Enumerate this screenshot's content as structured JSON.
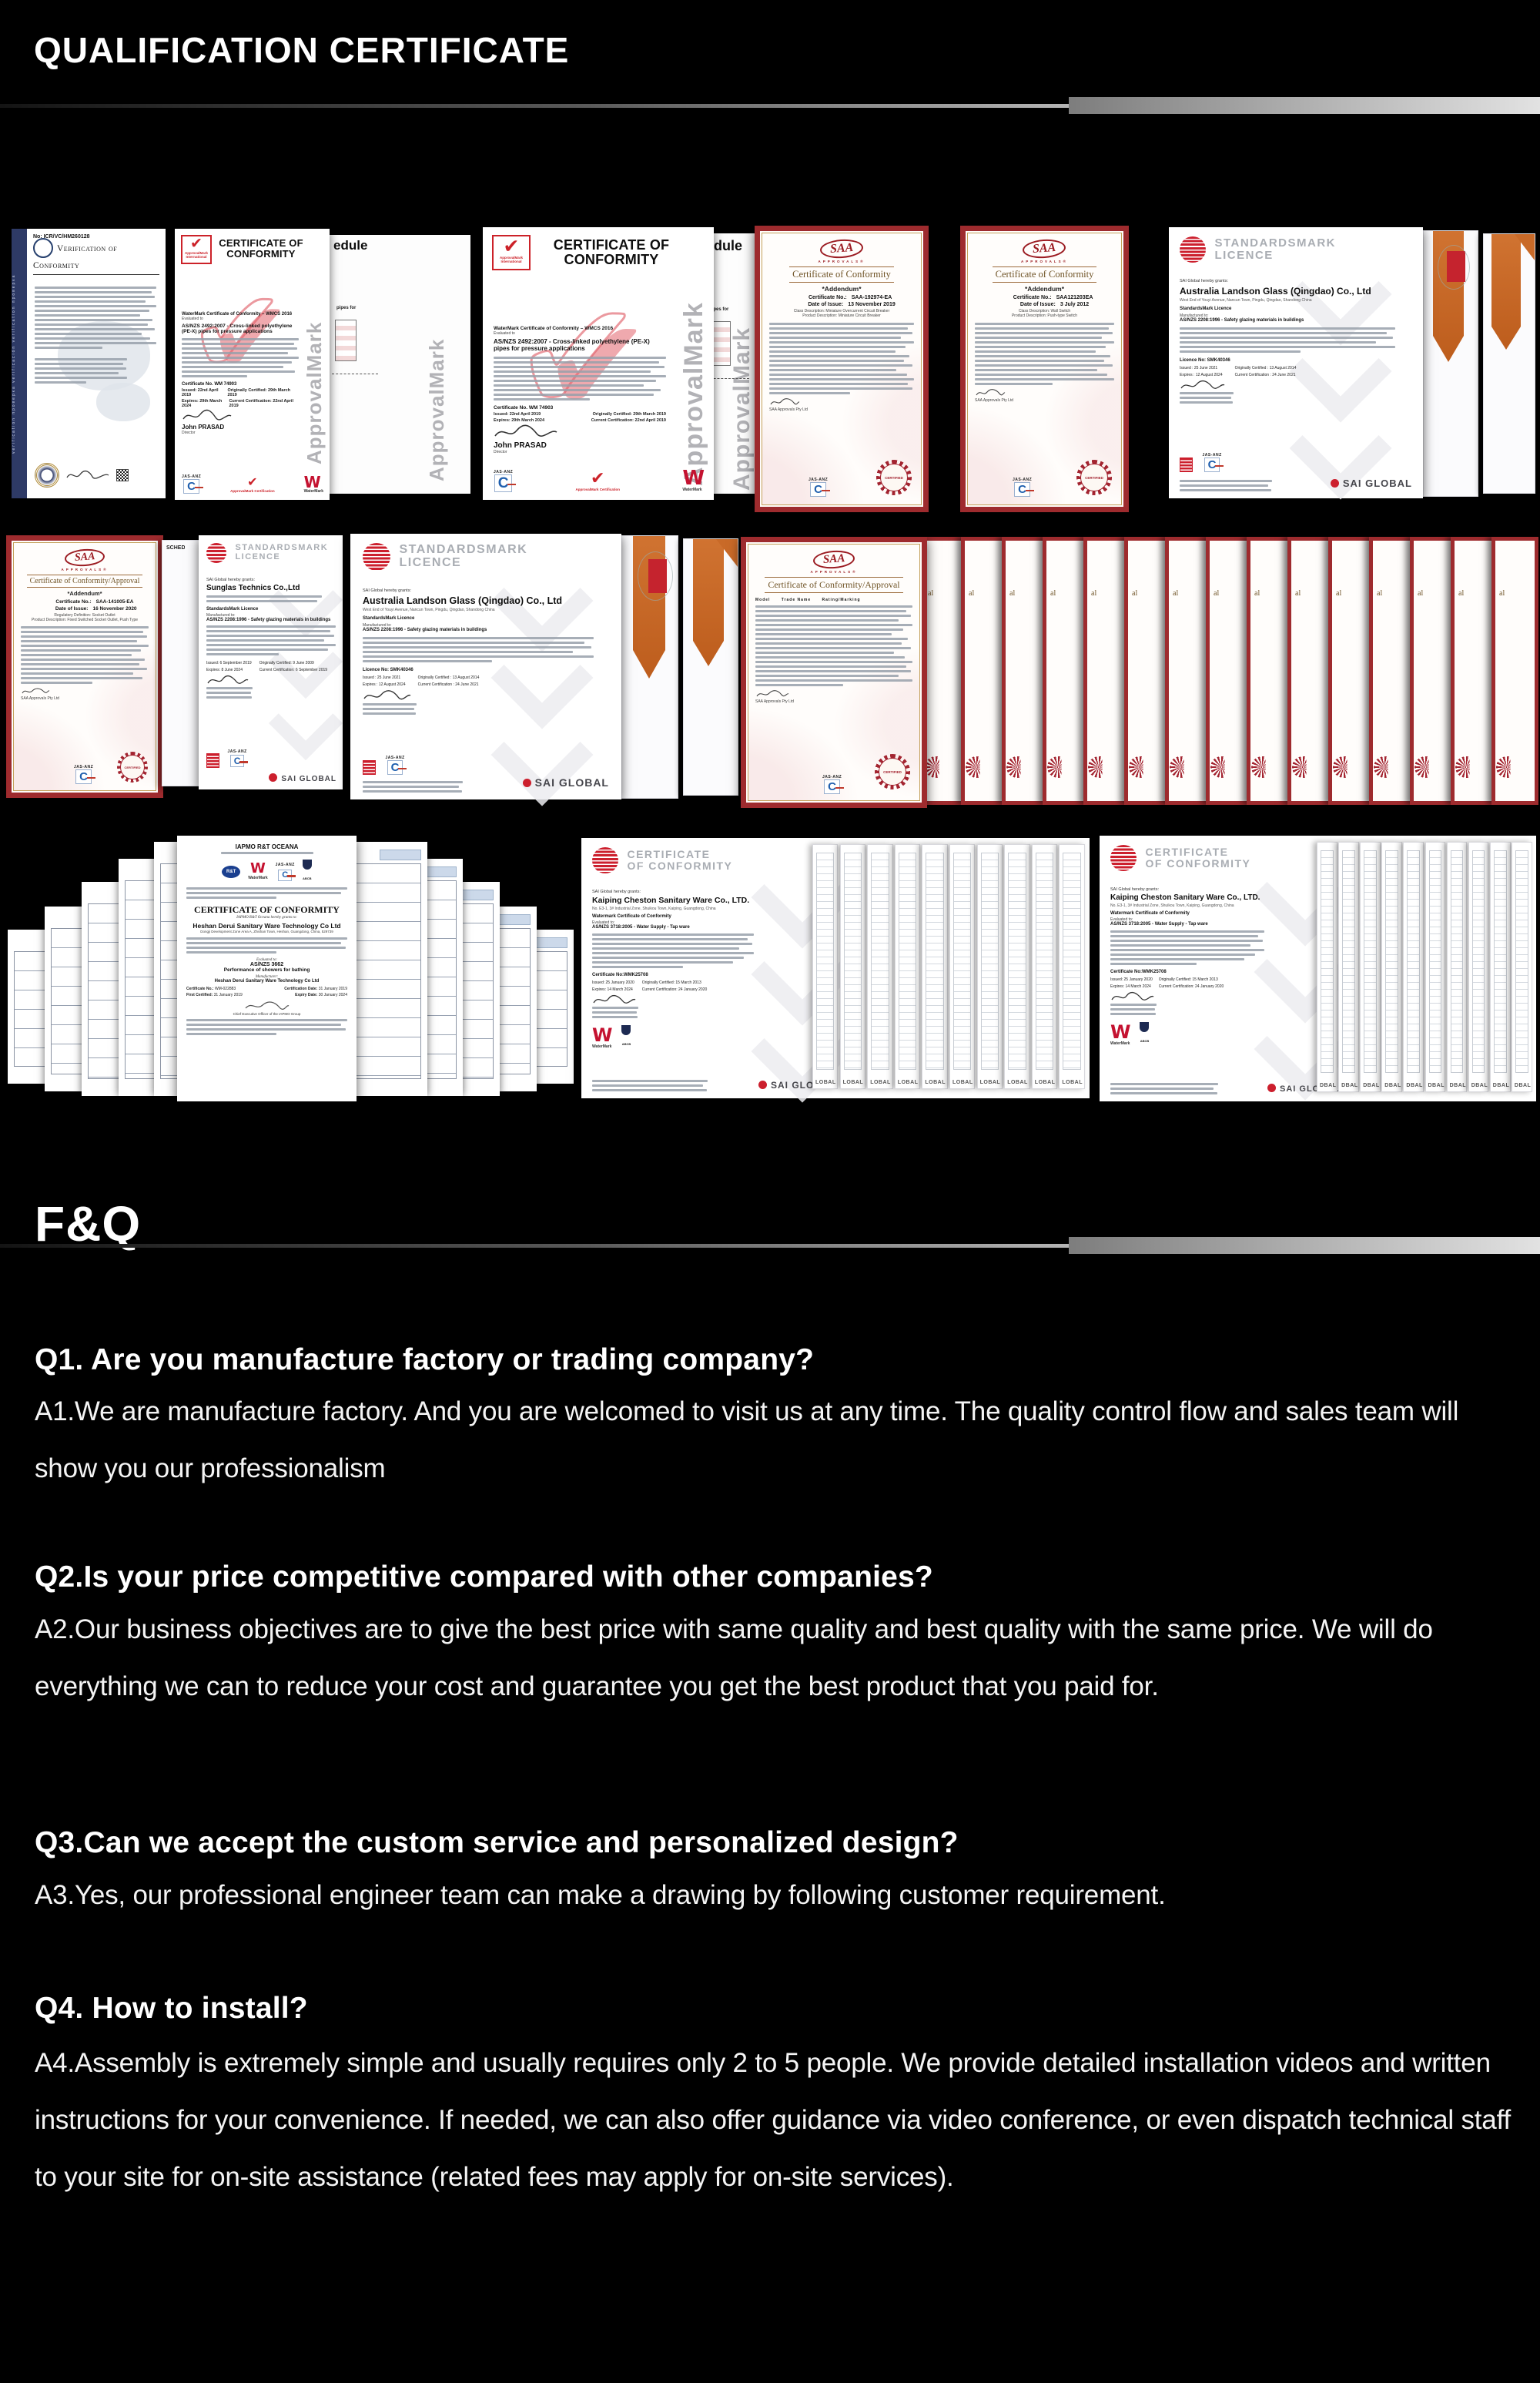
{
  "header": {
    "title": "QUALIFICATION CERTIFICATE"
  },
  "faq": {
    "title": "F&Q",
    "items": [
      {
        "q": "Q1. Are you manufacture factory or trading company?",
        "a": "A1.We are manufacture factory. And you are welcomed to visit us at any time. The quality control flow and sales team will show you our professionalism"
      },
      {
        "q": "Q2.Is your price competitive compared with other companies?",
        "a": "A2.Our business objectives are to give the best price with same quality and best quality with the same price. We will do everything we can to reduce your cost and guarantee you get the best product that you paid for."
      },
      {
        "q": "Q3.Can we accept the custom service and personalized design?",
        "a": "A3.Yes, our professional engineer team can make a drawing by following customer requirement."
      },
      {
        "q": "Q4. How to install?",
        "a": "A4.Assembly is extremely simple and usually requires only 2 to 5 people. We provide detailed installation videos and written instructions for your convenience. If needed, we can also offer guidance via video conference, or even dispatch technical staff to your site for on-site assistance (related fees may apply for on-site services)."
      }
    ]
  },
  "certs": {
    "icr": {
      "title": "Verification of Conformity",
      "cert_no": "No: ICR/VC/HM260128",
      "side_text": "verification проверка verificación verification проверка"
    },
    "am": {
      "title": "CERTIFICATE OF CONFORMITY",
      "logo_caption": "ApprovalMark International",
      "check_glyph": "✔",
      "schedule_fragment": "edule",
      "pipes_fragment": "pipes for",
      "watermark": "ApprovalMark",
      "intro": "WaterMark Certificate of Conformity – WMCS 2016",
      "evaluated": "Evaluated to",
      "standard": "AS/NZS 2492:2007 - Cross-linked polyethylene (PE-X) pipes for pressure applications",
      "cert_no": "Certificate No. WM 74903",
      "issued": "Issued: 22nd April 2019",
      "expires": "Expires: 29th March 2024",
      "orig": "Originally Certified: 29th March 2019",
      "curr": "Current Certification: 22nd April 2019",
      "signer": "John PRASAD",
      "signer_title": "Director",
      "am_caption": "ApprovalMark Certification",
      "wm_caption": "WaterMark",
      "jas": "JAS-ANZ"
    },
    "saa_common": {
      "logo": "SAA",
      "sub": "APPROVALS®",
      "jas": "JAS-ANZ",
      "seal": "CERTIFIED",
      "org": "SAA Approvals Pty Ltd"
    },
    "saa1": {
      "title": "Certificate of Conformity",
      "addendum": "*Addendum*",
      "no_label": "Certificate No.:",
      "no": "SAA-192974-EA",
      "date_label": "Date of Issue:",
      "date": "13 November 2019",
      "class1": "Class Description: Miniature Overcurrent Circuit Breaker",
      "class2": "Product Description: Miniature Circuit Breaker"
    },
    "saa2": {
      "title": "Certificate of Conformity",
      "addendum": "*Addendum*",
      "no_label": "Certificate No.:",
      "no": "SAA121203EA",
      "date_label": "Date of Issue:",
      "date": "3 July 2012",
      "class1": "Class Description: Wall Switch",
      "class2": "Product Description: Push-type Switch"
    },
    "saa3": {
      "title": "Certificate of Conformity/Approval",
      "addendum": "*Addendum*",
      "no_label": "Certificate No.:",
      "no": "SAA-141005-EA",
      "date_label": "Date of Issue:",
      "date": "16 November 2020",
      "class1": "Regulatory Definition: Socket Outlet",
      "class2": "Product Description: Fixed Switched Socket Outlet, Push Type"
    },
    "fan": {
      "title": "Certificate of Conformity/Approval",
      "th": "Model      Trade Name      Rating/Marking",
      "fragment": "al"
    },
    "sm": {
      "brand1": "STANDARDSMARK",
      "brand2": "LICENCE",
      "grants": "SAI Global hereby grants:",
      "licence_line": "StandardsMark Licence",
      "mfg": "Manufactured to:",
      "standard": "AS/NZS 2208:1996 - Safety glazing materials in buildings",
      "jas": "JAS-ANZ",
      "brand_footer": "SAI GLOBAL"
    },
    "landson": {
      "company": "Australia Landson Glass (Qingdao) Co., Ltd",
      "addr": "West End of Youyi Avenue, Nancun Town, Pingdu, Qingdao, Shandong China",
      "licno": "Licence No: SMK40346",
      "issued": "Issued : 25 June 2021",
      "expires": "Expires : 12 August 2024",
      "orig": "Originally Certified : 13 August 2014",
      "curr": "Current Certification : 24 June 2021"
    },
    "sunglas": {
      "company": "Sunglas Technics Co.,Ltd",
      "schedule_fragment": "SCHEDULE",
      "issued": "Issued: 6 September 2019",
      "expires": "Expires: 8 June 2024",
      "orig": "Originally Certified: 9 June 2009",
      "curr": "Current Certification: 6 September 2019"
    },
    "iapmo": {
      "header": "IAPMO R&T OCEANA",
      "rt": "R&T",
      "wm_caption": "WaterMark",
      "jas": "JAS-ANZ",
      "abcb": "ABCB",
      "title": "CERTIFICATE OF CONFORMITY",
      "grants": "IAPMO R&T Oceana hereby grants to:",
      "company": "Heshan Derui Sanitary Ware Technology Co Ltd",
      "addr": "Dongji Development Zone Area A, Zhishan Town, Heshan, Guangdong, China, 529739",
      "evaluated": "Evaluated to:",
      "standard": "AS/NZS 3662",
      "standard_desc": "Performance of showers for bathing",
      "mfr_label": "Manufacturer:",
      "mfr": "Heshan Derui Sanitary Ware Technology Co Ltd",
      "no_label": "Certificate No.:",
      "no": "WM-022883",
      "certdate_label": "Certification Date:",
      "certdate": "31 January 2019",
      "first_label": "First Certified:",
      "first": "31 January 2019",
      "expiry_label": "Expiry Date:",
      "expiry": "30 January 2024",
      "ceo": "Chief Executive Officer of the IAPMO Group"
    },
    "kaiping": {
      "brand1": "CERTIFICATE",
      "brand2": "OF CONFORMITY",
      "grants": "SAI Global hereby grants:",
      "company": "Kaiping Cheston Sanitary Ware Co., LTD.",
      "addr": "No. E3-1, 3# Industrial Zone, Shuikou Town, Kaiping, Guangdong, China",
      "wm_line": "Watermark Certificate of Conformity",
      "evaluated": "Evaluated to:",
      "standard": "AS/NZS 3718:2005 - Water Supply - Tap ware",
      "certno": "Certificate No:WMK25708",
      "issued": "Issued: 25 January 2020",
      "expires": "Expires: 14 March 2024",
      "orig": "Originally Certified: 15 March 2013",
      "curr": "Current Certification: 24 January 2020",
      "wm_caption": "WaterMark",
      "abcb": "ABCB",
      "brand_footer": "SAI GLOBAL",
      "strip_a": "LOBAL",
      "strip_b": "DBAL"
    }
  }
}
